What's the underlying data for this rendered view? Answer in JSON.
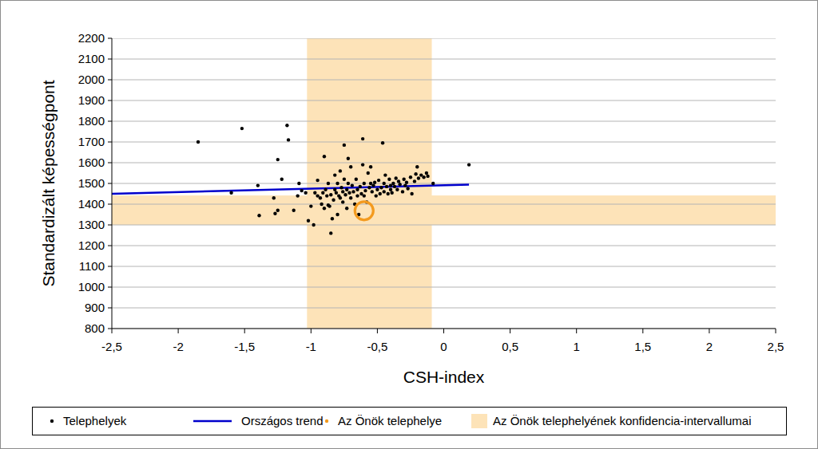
{
  "chart_data": {
    "type": "scatter",
    "x_label": "CSH-index",
    "y_label": "Standardizált képességpont",
    "xlim": [
      -2.5,
      2.5
    ],
    "ylim": [
      800,
      2200
    ],
    "xticks": [
      {
        "value": -2.5,
        "label": "-2,5"
      },
      -2,
      {
        "value": -1.5,
        "label": "-1,5"
      },
      -1,
      {
        "value": -0.5,
        "label": "-0,5"
      },
      0,
      {
        "value": 0.5,
        "label": "0,5"
      },
      1,
      {
        "value": 1.5,
        "label": "1,5"
      },
      2,
      {
        "value": 2.5,
        "label": "2,5"
      }
    ],
    "yticks": [
      800,
      900,
      1000,
      1100,
      1200,
      1300,
      1400,
      1500,
      1600,
      1700,
      1800,
      1900,
      2000,
      2100,
      2200
    ],
    "grid": true,
    "legend": "bottom",
    "series": [
      {
        "name": "Telephelyek",
        "type": "scatter",
        "color": "#000000",
        "marker": "dot",
        "x": [
          -1.85,
          -1.52,
          -1.6,
          -1.4,
          -1.39,
          -1.28,
          -1.27,
          -1.25,
          -1.25,
          -1.22,
          -1.18,
          -1.17,
          -1.13,
          -1.1,
          -1.09,
          -1.07,
          -1.04,
          -1.02,
          -1.0,
          -0.98,
          -0.97,
          -0.95,
          -0.95,
          -0.93,
          -0.92,
          -0.91,
          -0.9,
          -0.9,
          -0.89,
          -0.88,
          -0.87,
          -0.87,
          -0.86,
          -0.85,
          -0.85,
          -0.84,
          -0.83,
          -0.82,
          -0.82,
          -0.81,
          -0.8,
          -0.8,
          -0.79,
          -0.78,
          -0.78,
          -0.77,
          -0.76,
          -0.76,
          -0.75,
          -0.75,
          -0.74,
          -0.73,
          -0.73,
          -0.72,
          -0.72,
          -0.71,
          -0.7,
          -0.7,
          -0.69,
          -0.68,
          -0.67,
          -0.66,
          -0.65,
          -0.65,
          -0.64,
          -0.63,
          -0.62,
          -0.61,
          -0.61,
          -0.6,
          -0.6,
          -0.59,
          -0.58,
          -0.57,
          -0.56,
          -0.55,
          -0.55,
          -0.54,
          -0.53,
          -0.52,
          -0.51,
          -0.5,
          -0.49,
          -0.48,
          -0.47,
          -0.46,
          -0.45,
          -0.45,
          -0.44,
          -0.43,
          -0.42,
          -0.41,
          -0.4,
          -0.4,
          -0.39,
          -0.38,
          -0.37,
          -0.36,
          -0.35,
          -0.34,
          -0.33,
          -0.31,
          -0.3,
          -0.29,
          -0.28,
          -0.27,
          -0.25,
          -0.24,
          -0.22,
          -0.21,
          -0.2,
          -0.19,
          -0.17,
          -0.15,
          -0.13,
          -0.12,
          -0.08,
          0.19
        ],
        "values": [
          1700,
          1765,
          1455,
          1490,
          1345,
          1430,
          1355,
          1370,
          1615,
          1520,
          1780,
          1710,
          1370,
          1440,
          1500,
          1465,
          1455,
          1320,
          1390,
          1300,
          1455,
          1440,
          1515,
          1430,
          1400,
          1455,
          1630,
          1380,
          1470,
          1440,
          1395,
          1500,
          1390,
          1445,
          1260,
          1330,
          1420,
          1540,
          1470,
          1455,
          1500,
          1350,
          1440,
          1560,
          1430,
          1480,
          1460,
          1410,
          1520,
          1685,
          1445,
          1470,
          1380,
          1620,
          1500,
          1455,
          1580,
          1430,
          1490,
          1460,
          1400,
          1520,
          1470,
          1440,
          1350,
          1485,
          1450,
          1590,
          1715,
          1440,
          1500,
          1465,
          1410,
          1550,
          1480,
          1500,
          1580,
          1460,
          1490,
          1505,
          1440,
          1470,
          1515,
          1450,
          1480,
          1695,
          1500,
          1460,
          1540,
          1485,
          1450,
          1520,
          1490,
          1470,
          1455,
          1500,
          1485,
          1525,
          1470,
          1510,
          1495,
          1460,
          1520,
          1490,
          1505,
          1475,
          1530,
          1450,
          1510,
          1545,
          1580,
          1525,
          1540,
          1530,
          1550,
          1535,
          1500,
          1590
        ]
      },
      {
        "name": "Országos trend",
        "type": "line",
        "color": "#0000cc",
        "x": [
          -2.5,
          0.19
        ],
        "values": [
          1450,
          1494
        ]
      },
      {
        "name": "Az Önök telephelye",
        "type": "scatter",
        "color": "#f39a1e",
        "marker": "ring",
        "x": [
          -0.6
        ],
        "values": [
          1368
        ]
      },
      {
        "name": "Az Önök telephelyének konfidencia-intervallumai",
        "type": "band",
        "color": "#fde3b8",
        "x_interval": [
          -1.03,
          -0.09
        ],
        "y_interval": [
          1300,
          1442
        ]
      }
    ]
  }
}
